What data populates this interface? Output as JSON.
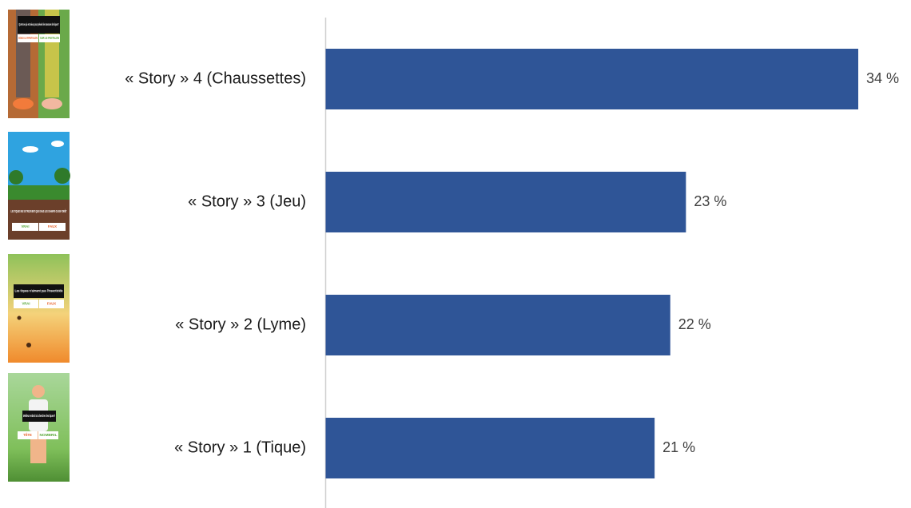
{
  "chart_data": {
    "type": "barh",
    "categories": [
      "« Story » 4 (Chaussettes)",
      "« Story » 3 (Jeu)",
      "« Story » 2 (Lyme)",
      "« Story » 1 (Tique)"
    ],
    "values": [
      34,
      23,
      22,
      21
    ],
    "value_labels": [
      "34 %",
      "23 %",
      "22 %",
      "21 %"
    ],
    "color": "#2f5597"
  },
  "thumbnails": [
    {
      "question": "Qu'est-ce qui est mieux pour prévenir les morsures de tiques?",
      "options": [
        "SOUS LE PANTALON",
        "SUR LE PANTALON"
      ]
    },
    {
      "question": "LES TIQUES NE SE TROUVENT QUE DANS LES CHAMPS OU EN FORÊT",
      "options": [
        "VRAI",
        "FAUX"
      ]
    },
    {
      "question": "Les tiques n'aiment pas l'insecticide",
      "options": [
        "VRAI",
        "FAUX"
      ]
    },
    {
      "question": "Meilleur endroit où chercher des tiques?",
      "options": [
        "TÊTE",
        "NOMBRIL"
      ]
    }
  ]
}
